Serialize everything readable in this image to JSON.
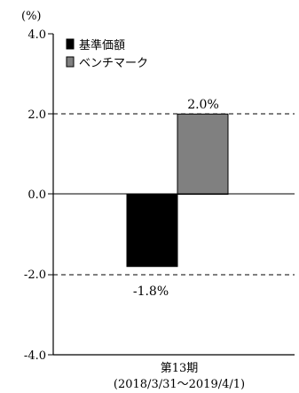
{
  "chart_data": {
    "type": "bar",
    "unit_label": "(%)",
    "categories": [
      "第13期"
    ],
    "category_sublabel": "(2018/3/31～2019/4/1)",
    "series": [
      {
        "name": "基準価額",
        "values": [
          -1.8
        ],
        "color": "#000000",
        "value_label": "-1.8%"
      },
      {
        "name": "ベンチマーク",
        "values": [
          2.0
        ],
        "color": "#808080",
        "value_label": "2.0%"
      }
    ],
    "ylim": [
      -4.0,
      4.0
    ],
    "yticks": [
      4.0,
      2.0,
      0.0,
      -2.0,
      -4.0
    ],
    "ytick_labels": [
      "4.0",
      "2.0",
      "0.0",
      "-2.0",
      "-4.0"
    ],
    "grid": "dashed at ±2.0",
    "legend_position": "top-left"
  }
}
